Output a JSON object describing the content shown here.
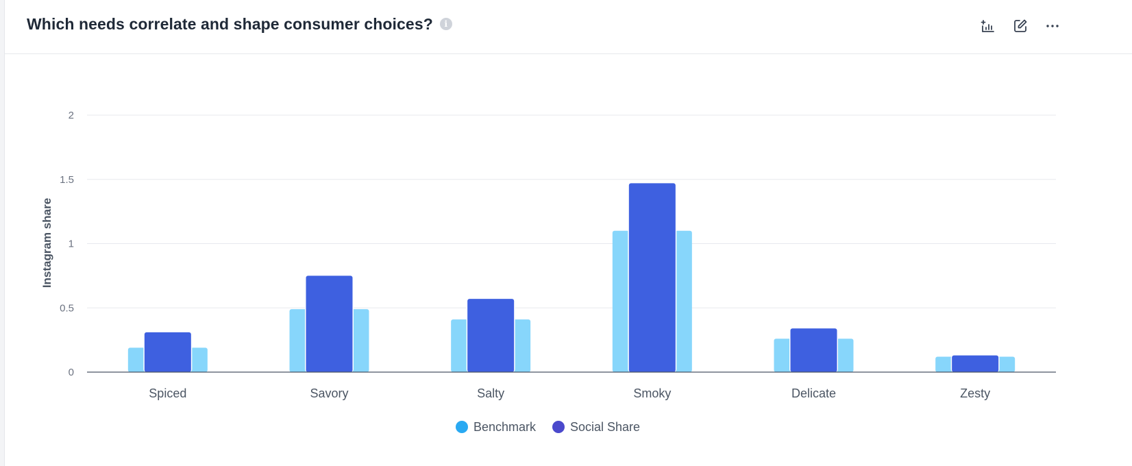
{
  "header": {
    "title": "Which needs correlate and shape consumer choices?",
    "info_icon": "info-icon",
    "tools": [
      "add-chart-icon",
      "edit-icon",
      "more-icon"
    ]
  },
  "colors": {
    "benchmark": "#87d6fb",
    "social_share": "#3e60e0",
    "legend_benchmark": "#29a9f2",
    "legend_social_share": "#4b49cc"
  },
  "chart_data": {
    "type": "bar",
    "categories": [
      "Spiced",
      "Savory",
      "Salty",
      "Smoky",
      "Delicate",
      "Zesty"
    ],
    "series": [
      {
        "name": "Benchmark",
        "values": [
          0.19,
          0.49,
          0.41,
          1.1,
          0.26,
          0.12
        ]
      },
      {
        "name": "Social Share",
        "values": [
          0.31,
          0.75,
          0.57,
          1.47,
          0.34,
          0.13
        ]
      }
    ],
    "ylabel": "Instagram share",
    "xlabel": "",
    "ylim": [
      0,
      2
    ],
    "yticks": [
      "0",
      "0.5",
      "1",
      "1.5",
      "2"
    ],
    "ytick_values": [
      0,
      0.5,
      1,
      1.5,
      2
    ],
    "grid": true,
    "legend": "bottom-center"
  }
}
